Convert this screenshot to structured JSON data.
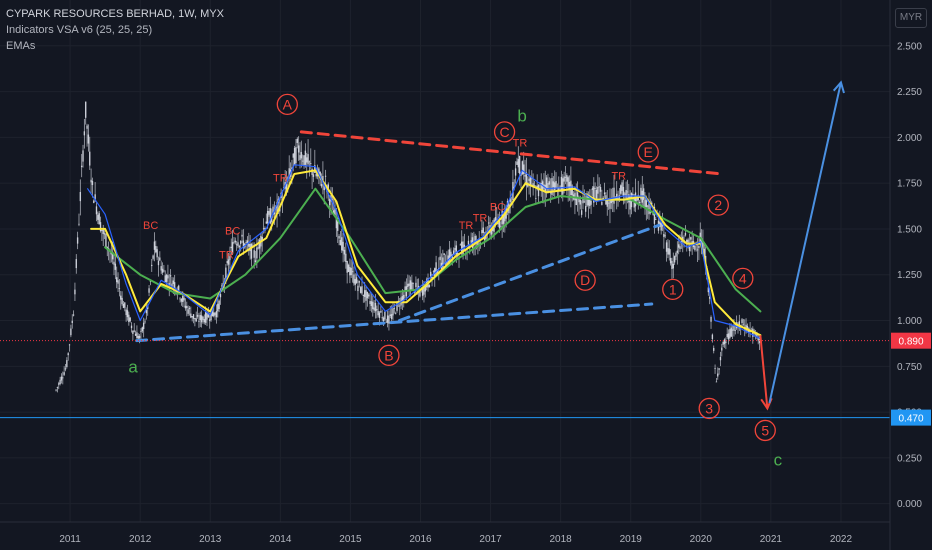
{
  "legend": {
    "title": "CYPARK RESOURCES BERHAD, 1W, MYX",
    "line2": "Indicators VSA v6 (25, 25, 25)",
    "line3": "EMAs"
  },
  "currency": "MYR",
  "colors": {
    "background": "#131722",
    "grid": "#1e222d",
    "candle": "#d9dde6",
    "ema_fast": "#2962ff",
    "ema_mid": "#ffeb3b",
    "ema_slow": "#4caf50",
    "red_line": "#f0453a",
    "blue_line": "#4a90e2",
    "label_red": "#f0453a",
    "label_green": "#4caf50",
    "price_marker": "#f23645",
    "level_marker": "#2196f3"
  },
  "chart_data": {
    "type": "line",
    "ylim": [
      -0.1,
      2.75
    ],
    "y_ticks": [
      "2.500",
      "2.250",
      "2.000",
      "1.750",
      "1.500",
      "1.250",
      "1.000",
      "0.750",
      "0.500",
      "0.250",
      "0.000"
    ],
    "x_ticks": [
      "2011",
      "2012",
      "2013",
      "2014",
      "2015",
      "2016",
      "2017",
      "2018",
      "2019",
      "2020",
      "2021",
      "2022"
    ],
    "price_path": [
      [
        2010.8,
        0.62
      ],
      [
        2010.95,
        0.75
      ],
      [
        2011.05,
        1.05
      ],
      [
        2011.15,
        1.7
      ],
      [
        2011.22,
        2.15
      ],
      [
        2011.32,
        1.72
      ],
      [
        2011.45,
        1.5
      ],
      [
        2011.6,
        1.35
      ],
      [
        2011.75,
        1.1
      ],
      [
        2011.9,
        0.95
      ],
      [
        2012.0,
        0.9
      ],
      [
        2012.1,
        1.05
      ],
      [
        2012.2,
        1.4
      ],
      [
        2012.35,
        1.25
      ],
      [
        2012.5,
        1.2
      ],
      [
        2012.65,
        1.08
      ],
      [
        2012.8,
        1.0
      ],
      [
        2012.95,
        1.02
      ],
      [
        2013.1,
        1.05
      ],
      [
        2013.25,
        1.3
      ],
      [
        2013.35,
        1.45
      ],
      [
        2013.5,
        1.42
      ],
      [
        2013.65,
        1.35
      ],
      [
        2013.8,
        1.55
      ],
      [
        2013.95,
        1.6
      ],
      [
        2014.1,
        1.75
      ],
      [
        2014.25,
        1.95
      ],
      [
        2014.35,
        1.88
      ],
      [
        2014.5,
        1.8
      ],
      [
        2014.65,
        1.75
      ],
      [
        2014.8,
        1.55
      ],
      [
        2014.95,
        1.3
      ],
      [
        2015.1,
        1.2
      ],
      [
        2015.25,
        1.12
      ],
      [
        2015.4,
        1.05
      ],
      [
        2015.55,
        1.0
      ],
      [
        2015.7,
        1.1
      ],
      [
        2015.85,
        1.2
      ],
      [
        2016.0,
        1.15
      ],
      [
        2016.1,
        1.2
      ],
      [
        2016.25,
        1.3
      ],
      [
        2016.4,
        1.35
      ],
      [
        2016.55,
        1.38
      ],
      [
        2016.7,
        1.42
      ],
      [
        2016.85,
        1.45
      ],
      [
        2017.0,
        1.5
      ],
      [
        2017.15,
        1.55
      ],
      [
        2017.3,
        1.65
      ],
      [
        2017.38,
        1.88
      ],
      [
        2017.5,
        1.78
      ],
      [
        2017.65,
        1.7
      ],
      [
        2017.8,
        1.75
      ],
      [
        2017.95,
        1.72
      ],
      [
        2018.1,
        1.75
      ],
      [
        2018.3,
        1.62
      ],
      [
        2018.5,
        1.7
      ],
      [
        2018.7,
        1.65
      ],
      [
        2018.85,
        1.72
      ],
      [
        2019.0,
        1.65
      ],
      [
        2019.15,
        1.7
      ],
      [
        2019.3,
        1.6
      ],
      [
        2019.45,
        1.5
      ],
      [
        2019.6,
        1.3
      ],
      [
        2019.75,
        1.45
      ],
      [
        2019.9,
        1.4
      ],
      [
        2020.0,
        1.45
      ],
      [
        2020.08,
        1.3
      ],
      [
        2020.15,
        1.0
      ],
      [
        2020.22,
        0.65
      ],
      [
        2020.3,
        0.85
      ],
      [
        2020.45,
        0.95
      ],
      [
        2020.6,
        0.98
      ],
      [
        2020.75,
        0.93
      ],
      [
        2020.85,
        0.89
      ]
    ],
    "ema_slow": [
      [
        2011.5,
        1.4
      ],
      [
        2012.0,
        1.25
      ],
      [
        2012.5,
        1.15
      ],
      [
        2013.0,
        1.12
      ],
      [
        2013.5,
        1.25
      ],
      [
        2014.0,
        1.45
      ],
      [
        2014.5,
        1.72
      ],
      [
        2015.0,
        1.45
      ],
      [
        2015.5,
        1.15
      ],
      [
        2016.0,
        1.17
      ],
      [
        2016.5,
        1.33
      ],
      [
        2017.0,
        1.45
      ],
      [
        2017.5,
        1.62
      ],
      [
        2018.0,
        1.68
      ],
      [
        2018.5,
        1.66
      ],
      [
        2019.0,
        1.66
      ],
      [
        2019.5,
        1.55
      ],
      [
        2020.0,
        1.45
      ],
      [
        2020.5,
        1.17
      ],
      [
        2020.85,
        1.05
      ]
    ],
    "ema_mid": [
      [
        2011.3,
        1.5
      ],
      [
        2011.5,
        1.5
      ],
      [
        2011.8,
        1.25
      ],
      [
        2012.0,
        1.05
      ],
      [
        2012.3,
        1.2
      ],
      [
        2012.6,
        1.15
      ],
      [
        2013.0,
        1.05
      ],
      [
        2013.4,
        1.35
      ],
      [
        2013.8,
        1.45
      ],
      [
        2014.2,
        1.8
      ],
      [
        2014.5,
        1.82
      ],
      [
        2014.8,
        1.65
      ],
      [
        2015.1,
        1.3
      ],
      [
        2015.5,
        1.1
      ],
      [
        2015.8,
        1.1
      ],
      [
        2016.1,
        1.2
      ],
      [
        2016.5,
        1.35
      ],
      [
        2016.9,
        1.45
      ],
      [
        2017.2,
        1.58
      ],
      [
        2017.5,
        1.75
      ],
      [
        2017.8,
        1.7
      ],
      [
        2018.2,
        1.72
      ],
      [
        2018.5,
        1.66
      ],
      [
        2018.9,
        1.66
      ],
      [
        2019.2,
        1.68
      ],
      [
        2019.5,
        1.52
      ],
      [
        2019.8,
        1.42
      ],
      [
        2020.0,
        1.42
      ],
      [
        2020.2,
        1.1
      ],
      [
        2020.5,
        0.98
      ],
      [
        2020.85,
        0.92
      ]
    ],
    "ema_fast": [
      [
        2011.25,
        1.72
      ],
      [
        2011.5,
        1.58
      ],
      [
        2011.8,
        1.2
      ],
      [
        2012.0,
        1.0
      ],
      [
        2012.3,
        1.22
      ],
      [
        2012.6,
        1.15
      ],
      [
        2013.0,
        1.03
      ],
      [
        2013.4,
        1.38
      ],
      [
        2013.8,
        1.5
      ],
      [
        2014.2,
        1.85
      ],
      [
        2014.5,
        1.84
      ],
      [
        2014.8,
        1.6
      ],
      [
        2015.1,
        1.25
      ],
      [
        2015.5,
        1.05
      ],
      [
        2015.8,
        1.12
      ],
      [
        2016.1,
        1.22
      ],
      [
        2016.5,
        1.37
      ],
      [
        2016.9,
        1.46
      ],
      [
        2017.2,
        1.6
      ],
      [
        2017.45,
        1.82
      ],
      [
        2017.8,
        1.72
      ],
      [
        2018.2,
        1.73
      ],
      [
        2018.5,
        1.65
      ],
      [
        2018.9,
        1.68
      ],
      [
        2019.2,
        1.68
      ],
      [
        2019.5,
        1.5
      ],
      [
        2019.8,
        1.4
      ],
      [
        2020.0,
        1.43
      ],
      [
        2020.2,
        1.0
      ],
      [
        2020.5,
        0.97
      ],
      [
        2020.85,
        0.9
      ]
    ],
    "red_dashed": [
      [
        2014.3,
        2.03
      ],
      [
        2020.3,
        1.8
      ]
    ],
    "blue_dashed": [
      [
        [
          2011.95,
          0.89
        ],
        [
          2019.3,
          1.09
        ]
      ],
      [
        [
          2015.7,
          1.0
        ],
        [
          2019.4,
          1.52
        ]
      ]
    ],
    "wave_down": [
      [
        2020.85,
        0.92
      ],
      [
        2020.95,
        0.52
      ]
    ],
    "wave_up": [
      [
        2020.98,
        0.55
      ],
      [
        2022.0,
        2.3
      ]
    ],
    "current_price": 0.89,
    "current_price_label": "0.890",
    "level": 0.47,
    "level_label": "0.470",
    "wave_labels": [
      {
        "text": "A",
        "x": 2014.1,
        "y": 2.18,
        "circle": true,
        "color": "red"
      },
      {
        "text": "B",
        "x": 2015.55,
        "y": 0.81,
        "circle": true,
        "color": "red"
      },
      {
        "text": "C",
        "x": 2017.2,
        "y": 2.03,
        "circle": true,
        "color": "red"
      },
      {
        "text": "D",
        "x": 2018.35,
        "y": 1.22,
        "circle": true,
        "color": "red"
      },
      {
        "text": "E",
        "x": 2019.25,
        "y": 1.92,
        "circle": true,
        "color": "red"
      },
      {
        "text": "1",
        "x": 2019.6,
        "y": 1.17,
        "circle": true,
        "color": "red"
      },
      {
        "text": "2",
        "x": 2020.25,
        "y": 1.63,
        "circle": true,
        "color": "red"
      },
      {
        "text": "3",
        "x": 2020.12,
        "y": 0.52,
        "circle": true,
        "color": "red"
      },
      {
        "text": "4",
        "x": 2020.6,
        "y": 1.23,
        "circle": true,
        "color": "red"
      },
      {
        "text": "5",
        "x": 2020.92,
        "y": 0.4,
        "circle": true,
        "color": "red"
      },
      {
        "text": "a",
        "x": 2011.9,
        "y": 0.75,
        "circle": false,
        "color": "green"
      },
      {
        "text": "b",
        "x": 2017.45,
        "y": 2.12,
        "circle": false,
        "color": "green"
      },
      {
        "text": "c",
        "x": 2021.1,
        "y": 0.24,
        "circle": false,
        "color": "green"
      }
    ],
    "vsa_labels": [
      {
        "text": "BC",
        "x": 2012.15,
        "y": 1.5
      },
      {
        "text": "BC",
        "x": 2013.32,
        "y": 1.47
      },
      {
        "text": "TR",
        "x": 2013.23,
        "y": 1.34
      },
      {
        "text": "TR",
        "x": 2014.0,
        "y": 1.76
      },
      {
        "text": "TR",
        "x": 2016.65,
        "y": 1.5
      },
      {
        "text": "TR",
        "x": 2016.85,
        "y": 1.54
      },
      {
        "text": "BC",
        "x": 2017.1,
        "y": 1.6
      },
      {
        "text": "TR",
        "x": 2017.42,
        "y": 1.95
      },
      {
        "text": "TR",
        "x": 2018.83,
        "y": 1.77
      }
    ]
  }
}
